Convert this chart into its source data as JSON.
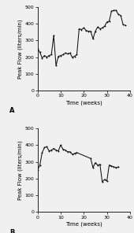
{
  "panel_A": {
    "x": [
      0,
      1,
      2,
      3,
      4,
      5,
      6,
      7,
      8,
      9,
      10,
      11,
      12,
      13,
      14,
      15,
      16,
      17,
      18,
      19,
      20,
      21,
      22,
      23,
      24,
      25,
      26,
      27,
      28,
      29,
      30,
      31,
      32,
      33,
      34,
      35,
      36,
      37,
      38
    ],
    "y": [
      250,
      230,
      195,
      210,
      200,
      210,
      215,
      330,
      150,
      205,
      210,
      215,
      225,
      220,
      225,
      200,
      205,
      215,
      370,
      365,
      375,
      360,
      355,
      355,
      310,
      355,
      380,
      370,
      375,
      385,
      410,
      415,
      475,
      480,
      480,
      455,
      450,
      395,
      390
    ],
    "label_letter": "A"
  },
  "panel_B": {
    "x": [
      0,
      1,
      2,
      3,
      4,
      5,
      6,
      7,
      8,
      9,
      10,
      11,
      12,
      13,
      14,
      15,
      16,
      17,
      23,
      24,
      25,
      26,
      27,
      28,
      29,
      30,
      31,
      32,
      33,
      34,
      35
    ],
    "y": [
      250,
      280,
      355,
      385,
      390,
      365,
      370,
      380,
      370,
      365,
      400,
      375,
      370,
      360,
      360,
      345,
      350,
      355,
      320,
      265,
      295,
      280,
      285,
      180,
      195,
      185,
      280,
      275,
      270,
      265,
      270
    ],
    "label_letter": "B"
  },
  "ylabel": "Peak Flow (liters/min)",
  "xlabel": "Time (weeks)",
  "ylim": [
    0,
    500
  ],
  "xlim": [
    0,
    40
  ],
  "yticks": [
    0,
    100,
    200,
    300,
    400,
    500
  ],
  "xticks": [
    0,
    10,
    20,
    30,
    40
  ],
  "line_color": "#111111",
  "marker": ".",
  "marker_size": 2.0,
  "line_width": 0.75,
  "bg_color": "#f0f0f0",
  "label_fontsize": 5.0,
  "tick_fontsize": 4.5
}
